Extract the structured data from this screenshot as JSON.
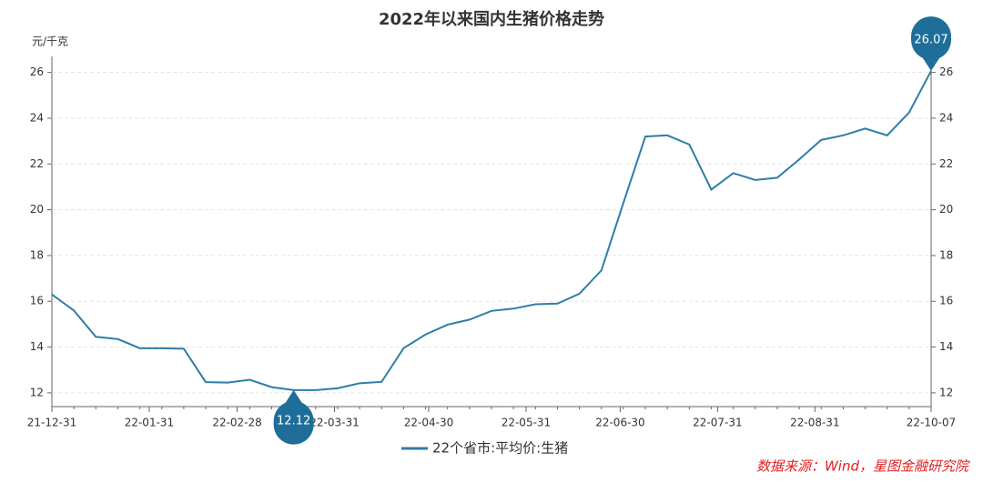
{
  "chart_data": {
    "type": "line",
    "title": "2022年以来国内生猪价格走势",
    "y_label": "元/千克",
    "source": "数据来源：Wind，星图金融研究院",
    "x": [
      0,
      7,
      14,
      21,
      28,
      35,
      42,
      49,
      56,
      63,
      70,
      77,
      84,
      91,
      98,
      105,
      112,
      119,
      126,
      133,
      140,
      147,
      154,
      161,
      168,
      175,
      182,
      189,
      196,
      203,
      210,
      217,
      224,
      231,
      238,
      245,
      252,
      259,
      266,
      273,
      280
    ],
    "xlim": [
      0,
      280
    ],
    "xticks": [
      {
        "value": 0,
        "label": "21-12-31"
      },
      {
        "value": 31,
        "label": "22-01-31"
      },
      {
        "value": 59,
        "label": "22-02-28"
      },
      {
        "value": 90,
        "label": "22-03-31"
      },
      {
        "value": 120,
        "label": "22-04-30"
      },
      {
        "value": 151,
        "label": "22-05-31"
      },
      {
        "value": 181,
        "label": "22-06-30"
      },
      {
        "value": 212,
        "label": "22-07-31"
      },
      {
        "value": 243,
        "label": "22-08-31"
      },
      {
        "value": 280,
        "label": "22-10-07"
      }
    ],
    "ylim": [
      11.4,
      26.7
    ],
    "yticks": [
      12,
      14,
      16,
      18,
      20,
      22,
      24,
      26
    ],
    "grid": true,
    "series": [
      {
        "name": "22个省市:平均价:生猪",
        "color": "#2e7ea6",
        "values": [
          16.3,
          15.6,
          14.45,
          14.35,
          13.95,
          13.95,
          13.93,
          12.47,
          12.45,
          12.57,
          12.25,
          12.12,
          12.12,
          12.2,
          12.42,
          12.48,
          13.95,
          14.55,
          14.98,
          15.2,
          15.58,
          15.68,
          15.87,
          15.9,
          16.33,
          17.35,
          20.3,
          23.2,
          23.25,
          22.85,
          20.88,
          21.6,
          21.3,
          21.4,
          22.2,
          23.05,
          23.25,
          23.55,
          23.25,
          24.25,
          26.07
        ]
      }
    ]
  }
}
